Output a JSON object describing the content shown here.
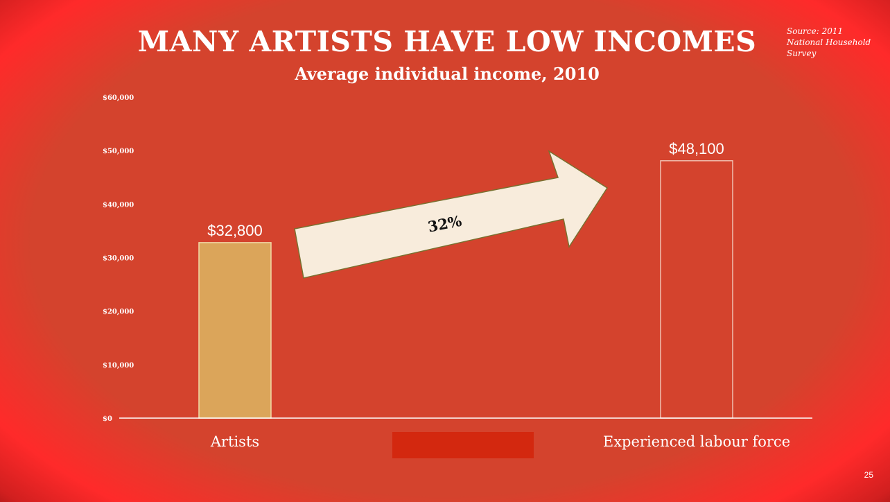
{
  "slide": {
    "title": "MANY ARTISTS HAVE LOW INCOMES",
    "subtitle": "Average individual income, 2010",
    "source_lines": [
      "Source: 2011",
      "National Household",
      "Survey"
    ],
    "page_number": "25"
  },
  "annotation": {
    "arrow_label": "32%"
  },
  "colors": {
    "background": "#d4432d",
    "artists_bar": "#dba55a",
    "labour_bar_outline": "#f0c0b0",
    "arrow_fill": "#f8ecdc",
    "arrow_stroke": "#7a7030"
  },
  "chart_data": {
    "type": "bar",
    "title": "Average individual income, 2010",
    "categories": [
      "Artists",
      "Experienced labour force"
    ],
    "values": [
      32800,
      48100
    ],
    "data_labels": [
      "$32,800",
      "$48,100"
    ],
    "yticks": [
      0,
      10000,
      20000,
      30000,
      40000,
      50000,
      60000
    ],
    "ytick_labels": [
      "$0",
      "$10,000",
      "$20,000",
      "$30,000",
      "$40,000",
      "$50,000",
      "$60,000"
    ],
    "ylim": [
      0,
      60000
    ],
    "xlabel": "",
    "ylabel": "",
    "grid": false,
    "legend": "none"
  }
}
